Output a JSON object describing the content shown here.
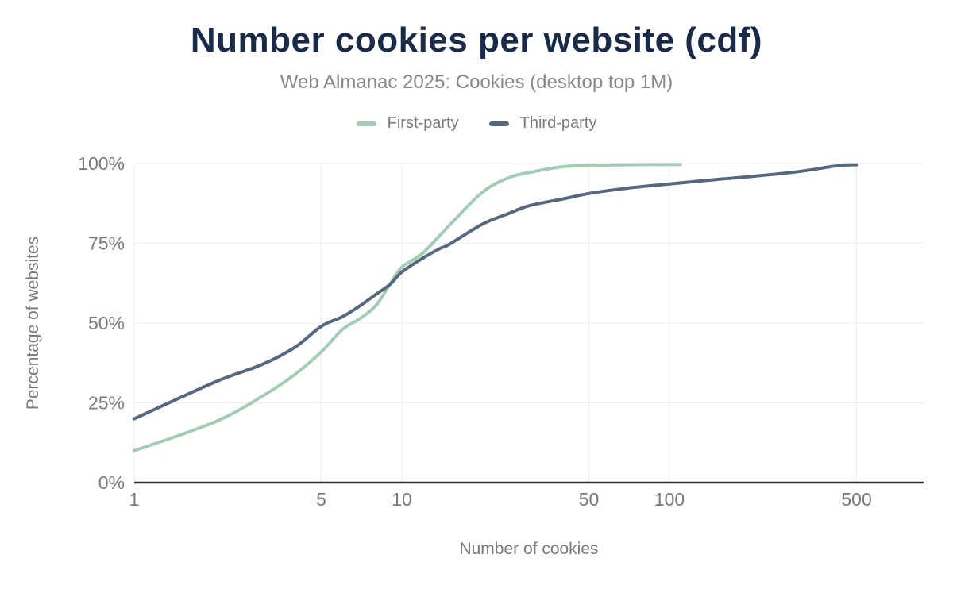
{
  "header": {
    "title": "Number cookies per website (cdf)",
    "subtitle": "Web Almanac 2025: Cookies (desktop top 1M)"
  },
  "colors": {
    "background": "#ffffff",
    "title": "#1a2b49",
    "subtitle": "#85888c",
    "axis_text": "#76797e",
    "grid": "#ececec",
    "axis_line": "#2d2d2d",
    "first_party": "#a4cbb4",
    "third_party": "#55687e"
  },
  "chart_data": {
    "type": "line",
    "title": "Number cookies per website (cdf)",
    "subtitle": "Web Almanac 2025: Cookies (desktop top 1M)",
    "xlabel": "Number of cookies",
    "ylabel": "Percentage of websites",
    "x_scale": "log10",
    "xlim": [
      1,
      830
    ],
    "ylim": [
      0,
      100
    ],
    "x_ticks": [
      1,
      5,
      10,
      50,
      100,
      500
    ],
    "y_ticks": [
      0,
      25,
      50,
      75,
      100
    ],
    "y_tick_suffix": "%",
    "grid": true,
    "legend_position": "top",
    "series": [
      {
        "name": "First-party",
        "color": "#a4cbb4",
        "points": [
          [
            1,
            10
          ],
          [
            2,
            19
          ],
          [
            3,
            27
          ],
          [
            4,
            34
          ],
          [
            5,
            41
          ],
          [
            6,
            48
          ],
          [
            7,
            51.5
          ],
          [
            8,
            55.5
          ],
          [
            9,
            62
          ],
          [
            10,
            67.5
          ],
          [
            12,
            72
          ],
          [
            15,
            80.5
          ],
          [
            20,
            91
          ],
          [
            25,
            95.5
          ],
          [
            30,
            97.2
          ],
          [
            40,
            99
          ],
          [
            50,
            99.4
          ],
          [
            70,
            99.6
          ],
          [
            100,
            99.7
          ],
          [
            110,
            99.7
          ]
        ]
      },
      {
        "name": "Third-party",
        "color": "#55687e",
        "points": [
          [
            1,
            20
          ],
          [
            2,
            31.5
          ],
          [
            3,
            37
          ],
          [
            4,
            42.5
          ],
          [
            5,
            49
          ],
          [
            6,
            52
          ],
          [
            7,
            55.5
          ],
          [
            8,
            59
          ],
          [
            9,
            62
          ],
          [
            10,
            66
          ],
          [
            12,
            70.4
          ],
          [
            14,
            73.5
          ],
          [
            15,
            74.6
          ],
          [
            20,
            81
          ],
          [
            25,
            84.3
          ],
          [
            30,
            86.8
          ],
          [
            40,
            88.9
          ],
          [
            50,
            90.6
          ],
          [
            70,
            92.3
          ],
          [
            100,
            93.6
          ],
          [
            150,
            95
          ],
          [
            200,
            95.9
          ],
          [
            300,
            97.4
          ],
          [
            400,
            99
          ],
          [
            450,
            99.5
          ],
          [
            500,
            99.6
          ]
        ]
      }
    ]
  }
}
